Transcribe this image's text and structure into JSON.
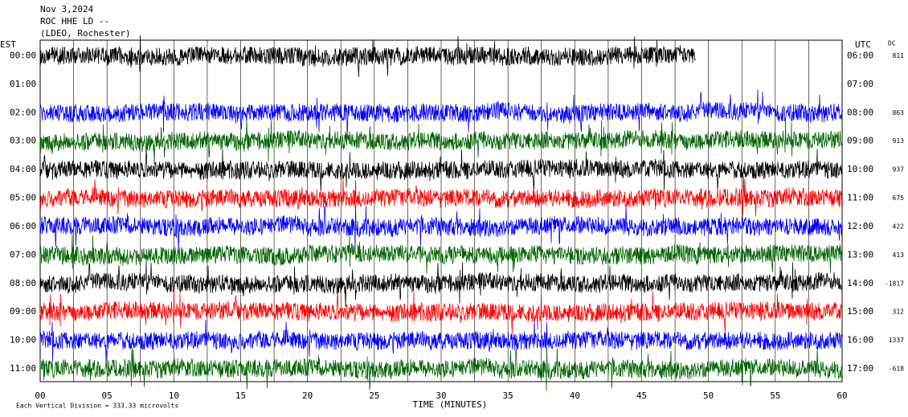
{
  "header": {
    "date": "Nov 3,2024",
    "station": "ROC HHE LD --",
    "network": "(LDEO, Rochester)"
  },
  "left_label": "EST",
  "right_label": "UTC",
  "dc_label": "DC",
  "rows": [
    {
      "est": "00:00",
      "utc": "06:00",
      "dc": "811",
      "color": "#000000",
      "trace_end": 49
    },
    {
      "est": "01:00",
      "utc": "07:00",
      "dc": null,
      "color": null
    },
    {
      "est": "02:00",
      "utc": "08:00",
      "dc": "863",
      "color": "#0000ff"
    },
    {
      "est": "03:00",
      "utc": "09:00",
      "dc": "913",
      "color": "#006400"
    },
    {
      "est": "04:00",
      "utc": "10:00",
      "dc": "937",
      "color": "#000000"
    },
    {
      "est": "05:00",
      "utc": "11:00",
      "dc": "675",
      "color": "#ff0000"
    },
    {
      "est": "06:00",
      "utc": "12:00",
      "dc": "422",
      "color": "#0000ff"
    },
    {
      "est": "07:00",
      "utc": "13:00",
      "dc": "413",
      "color": "#006400"
    },
    {
      "est": "08:00",
      "utc": "14:00",
      "dc": "-1817",
      "color": "#000000"
    },
    {
      "est": "09:00",
      "utc": "15:00",
      "dc": "312",
      "color": "#ff0000"
    },
    {
      "est": "10:00",
      "utc": "16:00",
      "dc": "1337",
      "color": "#0000ff"
    },
    {
      "est": "11:00",
      "utc": "17:00",
      "dc": "-618",
      "color": "#006400"
    }
  ],
  "x_axis": {
    "label": "TIME (MINUTES)",
    "ticks": [
      "00",
      "05",
      "10",
      "15",
      "20",
      "25",
      "30",
      "35",
      "40",
      "45",
      "50",
      "55",
      "60"
    ]
  },
  "footer": "Each Vertical Division =  333.33 microvolts"
}
